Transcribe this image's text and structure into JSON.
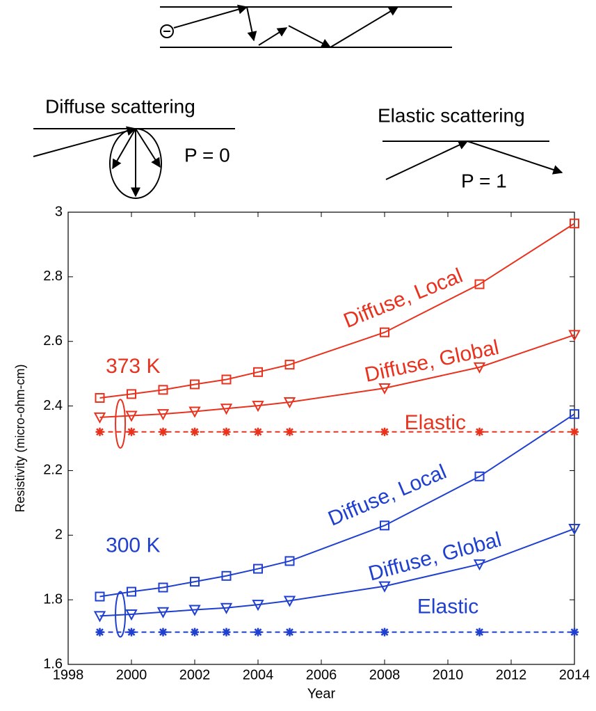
{
  "diagram": {
    "diffuse_title": "Diffuse scattering",
    "diffuse_p": "P = 0",
    "elastic_title": "Elastic scattering",
    "elastic_p": "P = 1"
  },
  "chart_data": {
    "type": "line",
    "xlabel": "Year",
    "ylabel": "Resistivity (micro-ohm-cm)",
    "x": [
      1999,
      2000,
      2001,
      2002,
      2003,
      2004,
      2005,
      2008,
      2011,
      2014
    ],
    "xlim": [
      1998,
      2014
    ],
    "xticks": [
      1998,
      2000,
      2002,
      2004,
      2006,
      2008,
      2010,
      2012,
      2014
    ],
    "ylim": [
      1.6,
      3
    ],
    "yticks": [
      1.6,
      1.8,
      2,
      2.2,
      2.4,
      2.6,
      2.8,
      3
    ],
    "series": [
      {
        "name": "Diffuse, Local",
        "color": "#e8321e",
        "marker": "square",
        "linestyle": "solid",
        "values": [
          2.425,
          2.437,
          2.45,
          2.467,
          2.482,
          2.505,
          2.528,
          2.628,
          2.777,
          2.965
        ]
      },
      {
        "name": "Diffuse, Global",
        "color": "#e8321e",
        "marker": "triangle-down",
        "linestyle": "solid",
        "values": [
          2.365,
          2.37,
          2.375,
          2.383,
          2.392,
          2.401,
          2.412,
          2.455,
          2.52,
          2.62
        ]
      },
      {
        "name": "Elastic",
        "color": "#e8321e",
        "marker": "asterisk",
        "linestyle": "dashed",
        "values": [
          2.32,
          2.32,
          2.32,
          2.32,
          2.32,
          2.32,
          2.32,
          2.32,
          2.32,
          2.32
        ]
      },
      {
        "name": "Diffuse, Local",
        "color": "#1f3fcf",
        "marker": "square",
        "linestyle": "solid",
        "values": [
          1.81,
          1.825,
          1.838,
          1.856,
          1.874,
          1.896,
          1.92,
          2.03,
          2.182,
          2.375
        ]
      },
      {
        "name": "Diffuse, Global",
        "color": "#1f3fcf",
        "marker": "triangle-down",
        "linestyle": "solid",
        "values": [
          1.75,
          1.755,
          1.762,
          1.769,
          1.775,
          1.785,
          1.797,
          1.842,
          1.91,
          2.02
        ]
      },
      {
        "name": "Elastic",
        "color": "#1f3fcf",
        "marker": "asterisk",
        "linestyle": "dashed",
        "values": [
          1.7,
          1.7,
          1.7,
          1.7,
          1.7,
          1.7,
          1.7,
          1.7,
          1.7,
          1.7
        ]
      }
    ],
    "annotations": [
      {
        "text": "373 K",
        "color": "#e8321e"
      },
      {
        "text": "300 K",
        "color": "#1f3fcf"
      }
    ]
  }
}
